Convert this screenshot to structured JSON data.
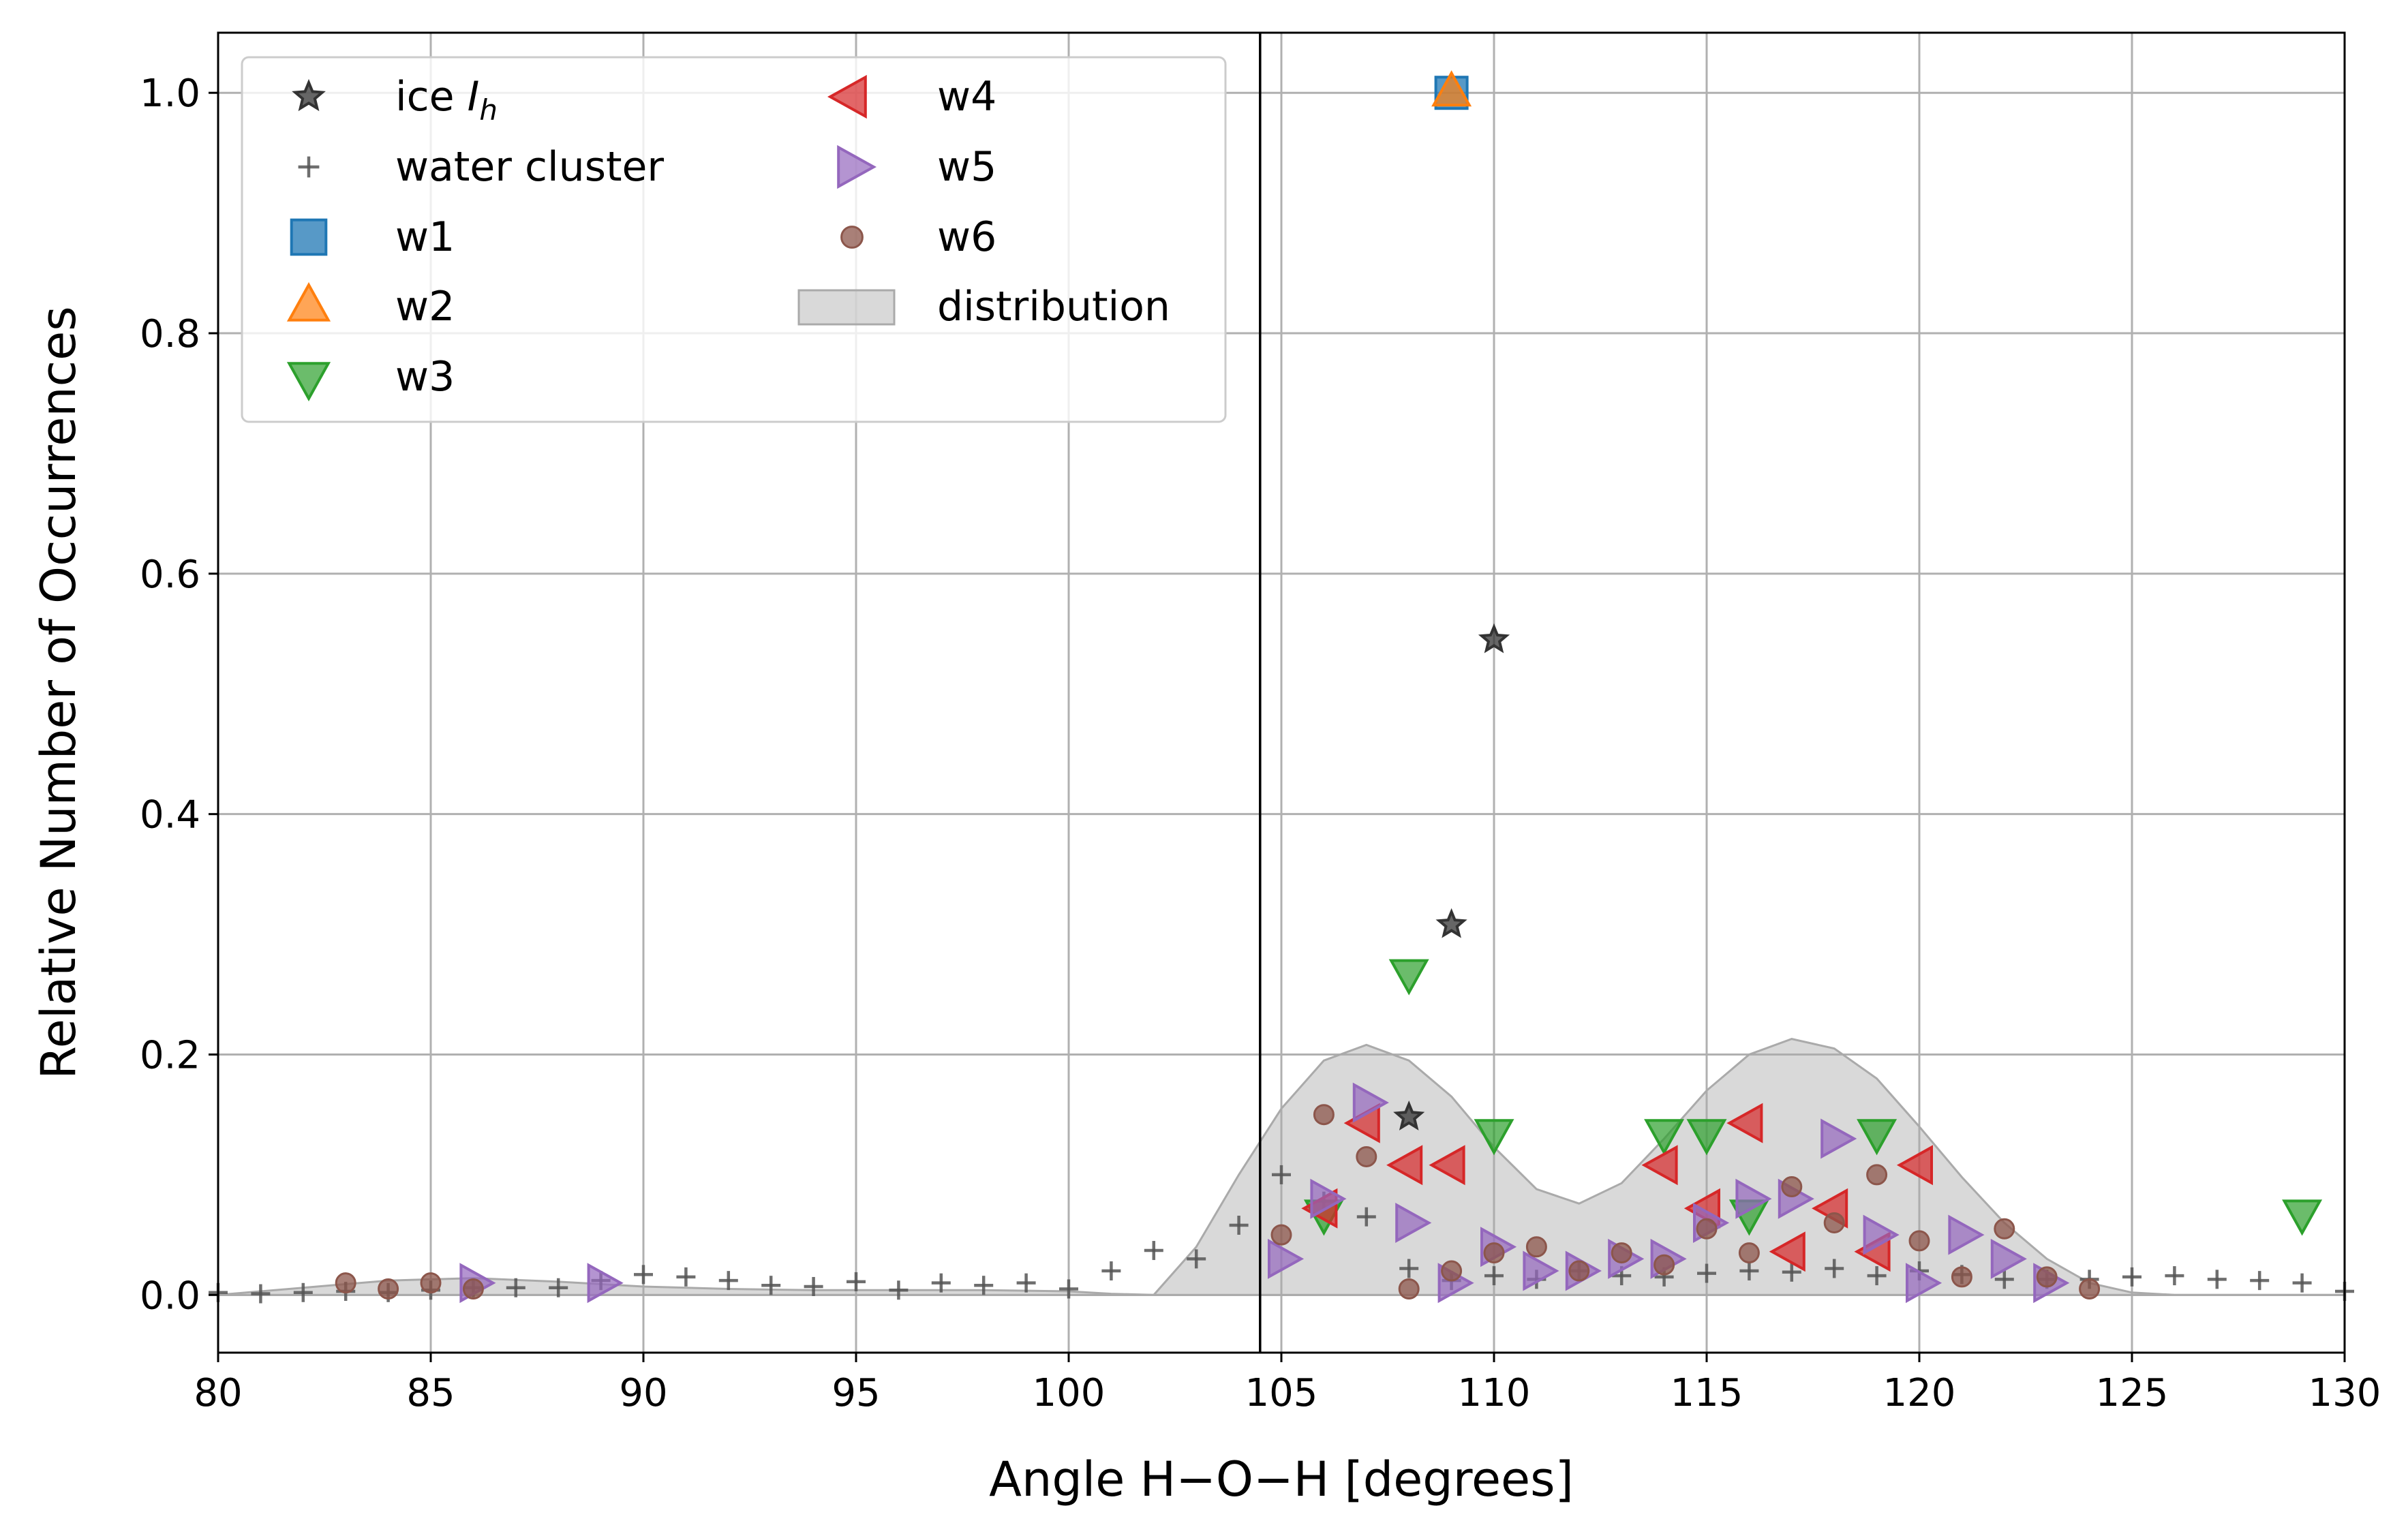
{
  "chart_data": {
    "type": "scatter",
    "xlabel": "Angle H−O−H [degrees]",
    "ylabel": "Relative Number of Occurrences",
    "xlim": [
      80,
      130
    ],
    "ylim": [
      -0.048,
      1.05
    ],
    "xticks": [
      "80",
      "85",
      "90",
      "95",
      "100",
      "105",
      "110",
      "115",
      "120",
      "125",
      "130"
    ],
    "yticks": [
      "0.0",
      "0.2",
      "0.4",
      "0.6",
      "0.8",
      "1.0"
    ],
    "grid": true,
    "legend_position": "top-left",
    "vertical_line_x": 104.5,
    "series": [
      {
        "name": "ice",
        "name_subscript_prefix": "I",
        "name_subscript": "h",
        "marker": "star",
        "color": "#333333",
        "points": [
          [
            108,
            0.148
          ],
          [
            109,
            0.308
          ],
          [
            110,
            0.545
          ]
        ]
      },
      {
        "name": "water cluster",
        "marker": "plus",
        "color": "#555555",
        "points": [
          [
            80,
            0.002
          ],
          [
            81,
            0.001
          ],
          [
            82,
            0.002
          ],
          [
            83,
            0.003
          ],
          [
            84,
            0.002
          ],
          [
            85,
            0.004
          ],
          [
            86,
            0.006
          ],
          [
            87,
            0.006
          ],
          [
            88,
            0.006
          ],
          [
            89,
            0.012
          ],
          [
            90,
            0.017
          ],
          [
            91,
            0.015
          ],
          [
            92,
            0.012
          ],
          [
            93,
            0.008
          ],
          [
            94,
            0.007
          ],
          [
            95,
            0.011
          ],
          [
            96,
            0.004
          ],
          [
            97,
            0.01
          ],
          [
            98,
            0.008
          ],
          [
            99,
            0.01
          ],
          [
            100,
            0.005
          ],
          [
            101,
            0.02
          ],
          [
            102,
            0.037
          ],
          [
            103,
            0.03
          ],
          [
            104,
            0.058
          ],
          [
            105,
            0.1
          ],
          [
            106,
            0.078
          ],
          [
            107,
            0.065
          ],
          [
            108,
            0.022
          ],
          [
            109,
            0.012
          ],
          [
            110,
            0.016
          ],
          [
            111,
            0.013
          ],
          [
            112,
            0.02
          ],
          [
            113,
            0.016
          ],
          [
            114,
            0.015
          ],
          [
            115,
            0.018
          ],
          [
            116,
            0.02
          ],
          [
            117,
            0.019
          ],
          [
            118,
            0.022
          ],
          [
            119,
            0.016
          ],
          [
            120,
            0.02
          ],
          [
            121,
            0.017
          ],
          [
            122,
            0.013
          ],
          [
            123,
            0.013
          ],
          [
            124,
            0.013
          ],
          [
            125,
            0.015
          ],
          [
            126,
            0.016
          ],
          [
            127,
            0.013
          ],
          [
            128,
            0.012
          ],
          [
            129,
            0.01
          ],
          [
            130,
            0.003
          ]
        ]
      },
      {
        "name": "w1",
        "marker": "square",
        "color": "#1f77b4",
        "points": [
          [
            109,
            1.0
          ]
        ]
      },
      {
        "name": "w2",
        "marker": "triangle-up",
        "color": "#ff7f0e",
        "points": [
          [
            109,
            1.0
          ]
        ]
      },
      {
        "name": "w3",
        "marker": "triangle-down",
        "color": "#2ca02c",
        "points": [
          [
            106,
            0.068
          ],
          [
            108,
            0.268
          ],
          [
            110,
            0.135
          ],
          [
            114,
            0.135
          ],
          [
            115,
            0.135
          ],
          [
            116,
            0.068
          ],
          [
            119,
            0.135
          ],
          [
            129,
            0.068
          ]
        ]
      },
      {
        "name": "w4",
        "marker": "triangle-left",
        "color": "#d62728",
        "points": [
          [
            106,
            0.072
          ],
          [
            107,
            0.143
          ],
          [
            108,
            0.108
          ],
          [
            109,
            0.108
          ],
          [
            114,
            0.108
          ],
          [
            115,
            0.072
          ],
          [
            116,
            0.143
          ],
          [
            117,
            0.036
          ],
          [
            118,
            0.072
          ],
          [
            119,
            0.036
          ],
          [
            120,
            0.108
          ]
        ]
      },
      {
        "name": "w5",
        "marker": "triangle-right",
        "color": "#9467bd",
        "points": [
          [
            86,
            0.01
          ],
          [
            89,
            0.01
          ],
          [
            105,
            0.03
          ],
          [
            106,
            0.08
          ],
          [
            107,
            0.16
          ],
          [
            108,
            0.06
          ],
          [
            109,
            0.01
          ],
          [
            110,
            0.04
          ],
          [
            111,
            0.02
          ],
          [
            112,
            0.02
          ],
          [
            113,
            0.03
          ],
          [
            114,
            0.03
          ],
          [
            115,
            0.06
          ],
          [
            116,
            0.08
          ],
          [
            117,
            0.08
          ],
          [
            118,
            0.13
          ],
          [
            119,
            0.05
          ],
          [
            120,
            0.01
          ],
          [
            121,
            0.05
          ],
          [
            122,
            0.03
          ],
          [
            123,
            0.01
          ]
        ]
      },
      {
        "name": "w6",
        "marker": "circle",
        "color": "#8c564b",
        "points": [
          [
            83,
            0.01
          ],
          [
            84,
            0.005
          ],
          [
            85,
            0.01
          ],
          [
            86,
            0.005
          ],
          [
            105,
            0.05
          ],
          [
            106,
            0.15
          ],
          [
            107,
            0.115
          ],
          [
            108,
            0.005
          ],
          [
            109,
            0.02
          ],
          [
            110,
            0.035
          ],
          [
            111,
            0.04
          ],
          [
            112,
            0.02
          ],
          [
            113,
            0.035
          ],
          [
            114,
            0.025
          ],
          [
            115,
            0.055
          ],
          [
            116,
            0.035
          ],
          [
            117,
            0.09
          ],
          [
            118,
            0.06
          ],
          [
            119,
            0.1
          ],
          [
            120,
            0.045
          ],
          [
            121,
            0.015
          ],
          [
            122,
            0.055
          ],
          [
            123,
            0.015
          ],
          [
            124,
            0.005
          ]
        ]
      },
      {
        "name": "distribution",
        "marker": "area",
        "color": "#aaaaaa",
        "points": [
          [
            80,
            0.0
          ],
          [
            82,
            0.006
          ],
          [
            84,
            0.012
          ],
          [
            86,
            0.014
          ],
          [
            88,
            0.011
          ],
          [
            90,
            0.007
          ],
          [
            92,
            0.005
          ],
          [
            94,
            0.004
          ],
          [
            96,
            0.004
          ],
          [
            98,
            0.004
          ],
          [
            100,
            0.003
          ],
          [
            101,
            0.001
          ],
          [
            102,
            0.0
          ],
          [
            103,
            0.04
          ],
          [
            104,
            0.1
          ],
          [
            105,
            0.155
          ],
          [
            106,
            0.195
          ],
          [
            107,
            0.208
          ],
          [
            108,
            0.195
          ],
          [
            109,
            0.165
          ],
          [
            110,
            0.123
          ],
          [
            111,
            0.088
          ],
          [
            112,
            0.076
          ],
          [
            113,
            0.093
          ],
          [
            114,
            0.13
          ],
          [
            115,
            0.17
          ],
          [
            116,
            0.2
          ],
          [
            117,
            0.213
          ],
          [
            118,
            0.205
          ],
          [
            119,
            0.18
          ],
          [
            120,
            0.14
          ],
          [
            121,
            0.098
          ],
          [
            122,
            0.06
          ],
          [
            123,
            0.03
          ],
          [
            124,
            0.01
          ],
          [
            125,
            0.002
          ],
          [
            126,
            0.0
          ],
          [
            130,
            0.0
          ]
        ]
      }
    ]
  }
}
